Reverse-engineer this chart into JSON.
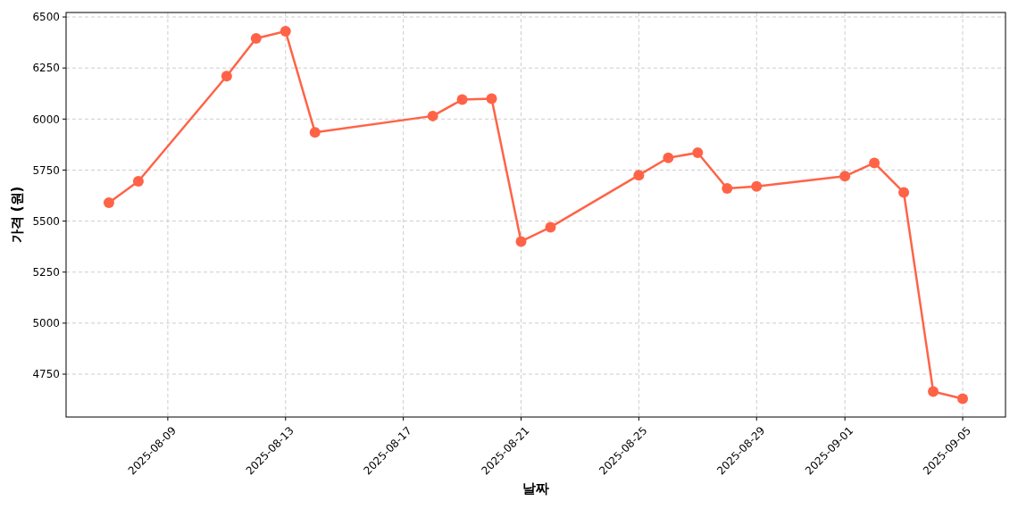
{
  "chart_data": {
    "type": "line",
    "xlabel": "날짜",
    "ylabel": "가격 (원)",
    "x": [
      "2025-08-07",
      "2025-08-08",
      "2025-08-11",
      "2025-08-12",
      "2025-08-13",
      "2025-08-14",
      "2025-08-18",
      "2025-08-19",
      "2025-08-20",
      "2025-08-21",
      "2025-08-22",
      "2025-08-25",
      "2025-08-26",
      "2025-08-27",
      "2025-08-28",
      "2025-08-29",
      "2025-09-01",
      "2025-09-02",
      "2025-09-03",
      "2025-09-04",
      "2025-09-05"
    ],
    "series": [
      {
        "color": "#ff6347",
        "values": [
          5590,
          5695,
          6210,
          6395,
          6430,
          5935,
          6015,
          6095,
          6100,
          5400,
          5470,
          5725,
          5810,
          5835,
          5660,
          5670,
          5720,
          5785,
          5640,
          4665,
          4630
        ]
      }
    ],
    "xlim": [
      "2025-08-05T13:05",
      "2025-09-06T10:55"
    ],
    "xticks": [
      "2025-08-09",
      "2025-08-13",
      "2025-08-17",
      "2025-08-21",
      "2025-08-25",
      "2025-08-29",
      "2025-09-01",
      "2025-09-05"
    ],
    "ylim": [
      4540,
      6522
    ],
    "yticks": [
      4750,
      5000,
      5250,
      5500,
      5750,
      6000,
      6250,
      6500
    ],
    "grid": true,
    "marker": "circle",
    "line_style": "solid"
  }
}
